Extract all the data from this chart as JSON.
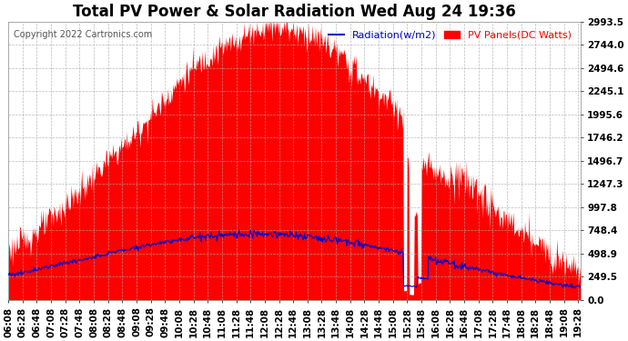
{
  "title": "Total PV Power & Solar Radiation Wed Aug 24 19:36",
  "copyright": "Copyright 2022 Cartronics.com",
  "legend_radiation": "Radiation(w/m2)",
  "legend_pv": "PV Panels(DC Watts)",
  "bg_color": "#ffffff",
  "plot_bg_color": "#ffffff",
  "grid_color": "#aaaaaa",
  "pv_color": "#ff0000",
  "radiation_color": "#0000cc",
  "yticks": [
    0.0,
    249.5,
    498.9,
    748.4,
    997.8,
    1247.3,
    1496.7,
    1746.2,
    1995.6,
    2245.1,
    2494.6,
    2744.0,
    2993.5
  ],
  "ymax": 2993.5,
  "title_fontsize": 12,
  "tick_fontsize": 7.5,
  "legend_fontsize": 8,
  "copyright_fontsize": 7
}
